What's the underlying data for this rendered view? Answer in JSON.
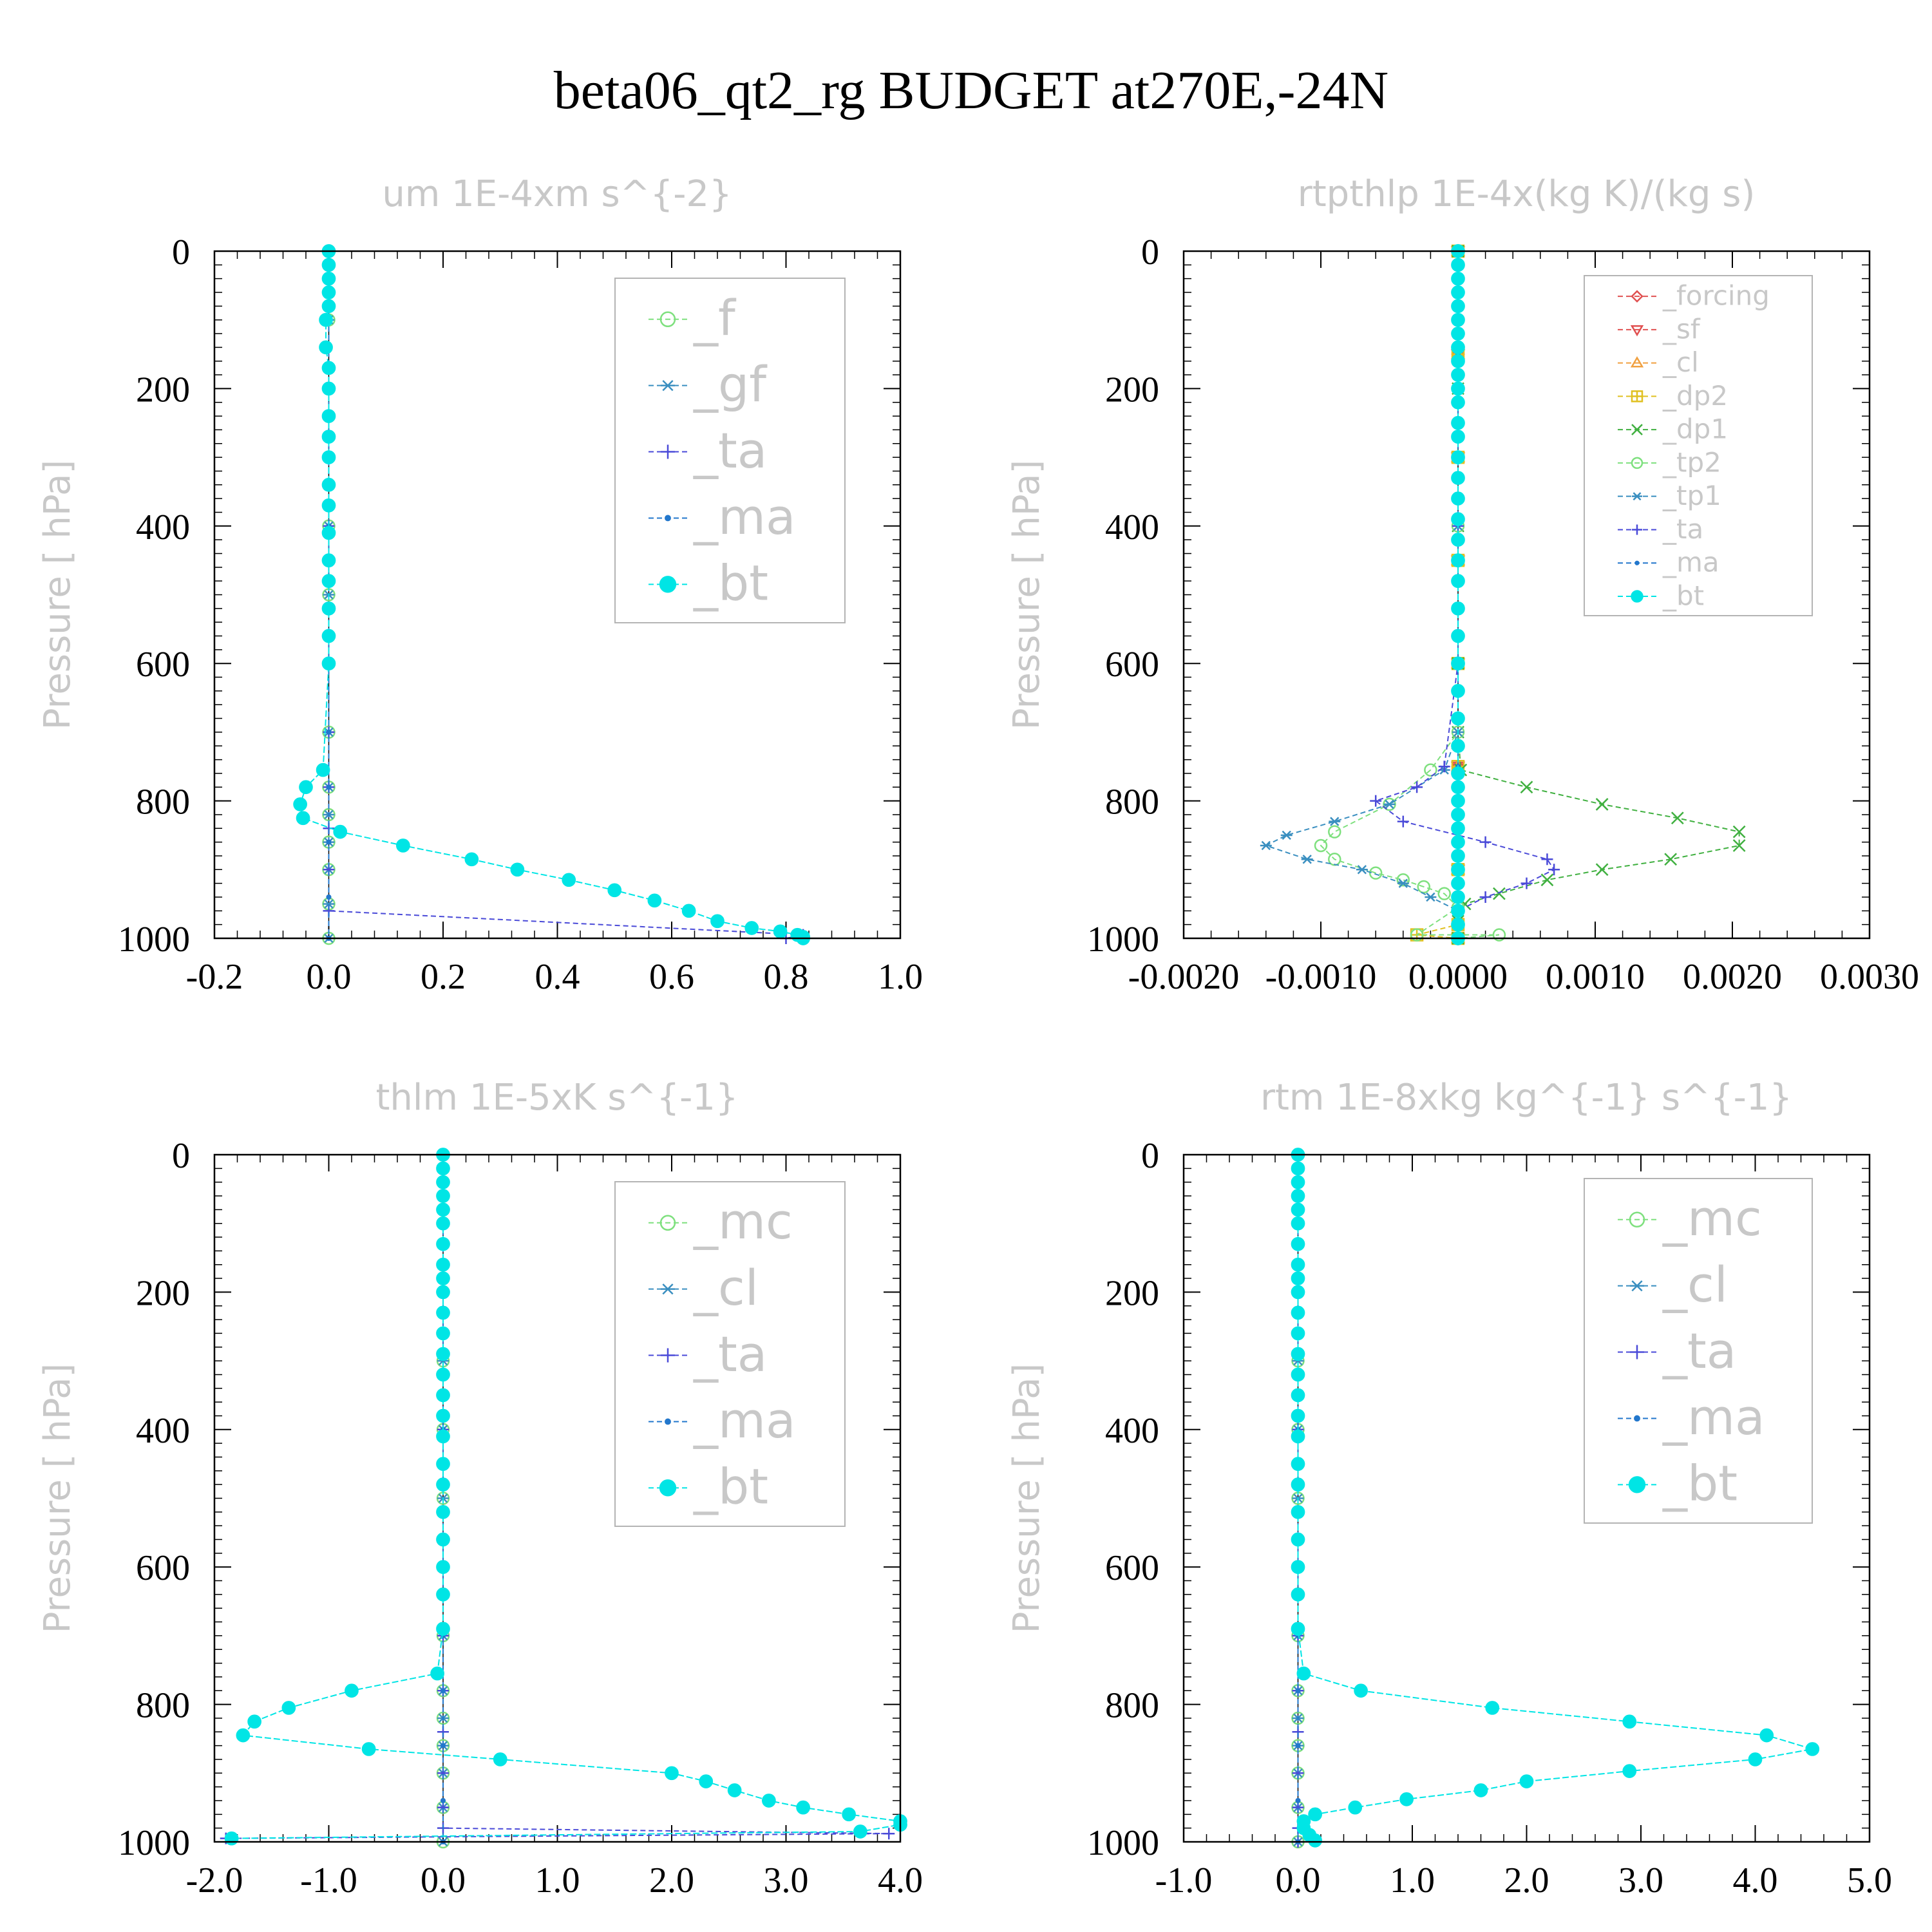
{
  "figure_title": "beta06_qt2_rg  BUDGET at270E,-24N",
  "chart_data": [
    {
      "type": "line",
      "title": "um  1E-4xm s^{-2}",
      "ylabel": "Pressure [ hPa]",
      "xlim": [
        -0.2,
        1.0
      ],
      "ylim": [
        1000,
        0
      ],
      "xticks": [
        "-0.2",
        "0.0",
        "0.2",
        "0.4",
        "0.6",
        "0.8",
        "1.0"
      ],
      "yticks": [
        "0",
        "200",
        "400",
        "600",
        "800",
        "1000"
      ],
      "legend_position": "top-right",
      "series": [
        {
          "name": "_f",
          "color": "#7ee07e",
          "marker": "circle",
          "x": [
            0,
            0,
            0,
            0,
            0,
            0,
            0,
            0,
            0,
            0,
            0,
            0,
            0,
            0
          ],
          "y": [
            0,
            100,
            200,
            300,
            400,
            500,
            600,
            700,
            780,
            820,
            860,
            900,
            950,
            1000
          ]
        },
        {
          "name": "_gf",
          "color": "#3a8fc0",
          "marker": "asterisk",
          "x": [
            0,
            0,
            0,
            0,
            0,
            0,
            0,
            0,
            0,
            0,
            0,
            0,
            0,
            0
          ],
          "y": [
            0,
            100,
            200,
            300,
            400,
            500,
            600,
            700,
            780,
            820,
            860,
            900,
            950,
            1000
          ]
        },
        {
          "name": "_ta",
          "color": "#4a4ad8",
          "marker": "plus",
          "x": [
            0,
            0,
            0,
            0,
            0,
            0,
            0,
            0,
            0,
            0.83,
            0.8
          ],
          "y": [
            0,
            200,
            400,
            600,
            700,
            780,
            840,
            900,
            960,
            995,
            1000
          ]
        },
        {
          "name": "_ma",
          "color": "#2277cc",
          "marker": "dot",
          "x": [
            0,
            0,
            0,
            0,
            0,
            0,
            0,
            0,
            0
          ],
          "y": [
            0,
            200,
            400,
            600,
            700,
            780,
            860,
            940,
            1000
          ]
        },
        {
          "name": "_bt",
          "color": "#00e5e5",
          "marker": "filled-circle",
          "x": [
            0,
            0,
            0,
            0,
            0,
            -0.005,
            -0.005,
            0,
            0,
            0,
            0,
            0,
            0,
            0,
            0,
            0,
            0,
            0,
            0,
            0,
            -0.01,
            -0.04,
            -0.05,
            -0.045,
            0.02,
            0.13,
            0.25,
            0.33,
            0.42,
            0.5,
            0.57,
            0.63,
            0.68,
            0.74,
            0.79,
            0.82,
            0.83,
            0.83
          ],
          "y": [
            0,
            20,
            40,
            60,
            80,
            100,
            140,
            170,
            200,
            240,
            270,
            300,
            340,
            370,
            410,
            450,
            480,
            520,
            560,
            600,
            755,
            780,
            805,
            825,
            845,
            865,
            885,
            900,
            915,
            930,
            945,
            960,
            975,
            985,
            990,
            995,
            998,
            1000
          ]
        }
      ]
    },
    {
      "type": "line",
      "title": "rtpthlp  1E-4x(kg K)/(kg s)",
      "ylabel": "Pressure [ hPa]",
      "xlim": [
        -0.002,
        0.003
      ],
      "ylim": [
        1000,
        0
      ],
      "xticks": [
        "-0.0020",
        "-0.0010",
        "0.0000",
        "0.0010",
        "0.0020",
        "0.0030"
      ],
      "yticks": [
        "0",
        "200",
        "400",
        "600",
        "800",
        "1000"
      ],
      "legend_position": "top-right",
      "series": [
        {
          "name": "_forcing",
          "color": "#e05050",
          "marker": "diamond",
          "x": [
            0,
            0,
            0,
            0,
            0,
            0,
            0,
            0
          ],
          "y": [
            0,
            150,
            300,
            450,
            600,
            750,
            900,
            1000
          ]
        },
        {
          "name": "_sf",
          "color": "#e05050",
          "marker": "triangle-down",
          "x": [
            0,
            0,
            0,
            0,
            0,
            0,
            0,
            0
          ],
          "y": [
            0,
            150,
            300,
            450,
            600,
            750,
            900,
            1000
          ]
        },
        {
          "name": "_cl",
          "color": "#f0a040",
          "marker": "triangle-up",
          "x": [
            0,
            0,
            0,
            0,
            0,
            0,
            0,
            0
          ],
          "y": [
            0,
            150,
            300,
            450,
            600,
            750,
            900,
            1000
          ]
        },
        {
          "name": "_dp2",
          "color": "#e0c020",
          "marker": "box-plus",
          "x": [
            0,
            0,
            0,
            0,
            0,
            0,
            0,
            0,
            -0.0003,
            0
          ],
          "y": [
            0,
            150,
            300,
            450,
            600,
            750,
            900,
            980,
            995,
            1000
          ]
        },
        {
          "name": "_dp1",
          "color": "#40b040",
          "marker": "cross",
          "x": [
            0,
            0,
            0,
            0,
            0,
            2e-05,
            0.0005,
            0.00105,
            0.0016,
            0.00205,
            0.00205,
            0.00155,
            0.00105,
            0.00065,
            0.0003,
            5e-05,
            0,
            0
          ],
          "y": [
            0,
            200,
            400,
            600,
            700,
            755,
            780,
            805,
            825,
            845,
            865,
            885,
            900,
            915,
            935,
            950,
            975,
            1000
          ]
        },
        {
          "name": "_tp2",
          "color": "#7ee07e",
          "marker": "circle",
          "x": [
            0,
            0,
            0,
            0,
            0,
            -0.0002,
            -0.0005,
            -0.0009,
            -0.001,
            -0.0009,
            -0.0006,
            -0.0004,
            -0.00025,
            -0.0001,
            0,
            -0.0003,
            0.0003,
            0
          ],
          "y": [
            0,
            200,
            400,
            600,
            700,
            755,
            805,
            845,
            865,
            885,
            905,
            915,
            925,
            935,
            955,
            995,
            995,
            1000
          ]
        },
        {
          "name": "_tp1",
          "color": "#3a8fc0",
          "marker": "asterisk",
          "x": [
            0,
            0,
            0,
            0,
            0,
            -0.0001,
            -0.0005,
            -0.0009,
            -0.00125,
            -0.0014,
            -0.0011,
            -0.0007,
            -0.0004,
            -0.0002,
            0,
            0
          ],
          "y": [
            0,
            200,
            400,
            600,
            700,
            755,
            805,
            830,
            850,
            865,
            885,
            900,
            920,
            940,
            960,
            1000
          ]
        },
        {
          "name": "_ta",
          "color": "#4a4ad8",
          "marker": "plus",
          "x": [
            0,
            0,
            0,
            0,
            -0.0001,
            -0.0003,
            -0.0006,
            -0.0004,
            0.0002,
            0.00065,
            0.0007,
            0.0005,
            0.0002,
            0,
            0
          ],
          "y": [
            0,
            200,
            400,
            600,
            750,
            780,
            800,
            830,
            860,
            885,
            900,
            920,
            940,
            960,
            1000
          ]
        },
        {
          "name": "_ma",
          "color": "#2277cc",
          "marker": "dot",
          "x": [
            0,
            0,
            0,
            0,
            0,
            0,
            0,
            0
          ],
          "y": [
            0,
            150,
            300,
            450,
            600,
            750,
            900,
            1000
          ]
        },
        {
          "name": "_bt",
          "color": "#00e5e5",
          "marker": "filled-circle",
          "x": [
            0,
            0,
            0,
            0,
            0,
            0,
            0,
            0,
            0,
            0,
            0,
            0,
            0,
            0,
            0,
            0,
            0,
            0,
            0,
            0,
            0,
            0,
            0,
            0,
            0,
            0,
            0,
            0,
            0,
            0,
            0,
            0,
            0,
            0,
            0,
            0,
            0,
            0,
            0,
            0
          ],
          "y": [
            0,
            20,
            40,
            60,
            80,
            100,
            120,
            140,
            160,
            180,
            200,
            220,
            250,
            270,
            300,
            330,
            360,
            390,
            420,
            450,
            480,
            520,
            560,
            600,
            640,
            680,
            720,
            760,
            780,
            800,
            820,
            840,
            860,
            880,
            900,
            920,
            940,
            960,
            980,
            1000
          ]
        }
      ]
    },
    {
      "type": "line",
      "title": "thlm  1E-5xK s^{-1}",
      "ylabel": "Pressure [ hPa]",
      "xlim": [
        -2.0,
        4.0
      ],
      "ylim": [
        1000,
        0
      ],
      "xticks": [
        "-2.0",
        "-1.0",
        "0.0",
        "1.0",
        "2.0",
        "3.0",
        "4.0"
      ],
      "yticks": [
        "0",
        "200",
        "400",
        "600",
        "800",
        "1000"
      ],
      "legend_position": "top-right",
      "series": [
        {
          "name": "_mc",
          "color": "#7ee07e",
          "marker": "circle",
          "x": [
            0,
            0,
            0,
            0,
            0,
            0,
            0,
            0,
            0,
            0,
            0,
            0,
            0,
            0
          ],
          "y": [
            0,
            100,
            200,
            300,
            400,
            500,
            600,
            700,
            780,
            820,
            860,
            900,
            950,
            1000
          ]
        },
        {
          "name": "_cl",
          "color": "#3a8fc0",
          "marker": "asterisk",
          "x": [
            0,
            0,
            0,
            0,
            0,
            0,
            0,
            0,
            0,
            0,
            0,
            0,
            0,
            0
          ],
          "y": [
            0,
            100,
            200,
            300,
            400,
            500,
            600,
            700,
            780,
            820,
            860,
            900,
            950,
            1000
          ]
        },
        {
          "name": "_ta",
          "color": "#4a4ad8",
          "marker": "plus",
          "x": [
            0,
            0,
            0,
            0,
            0,
            0,
            0,
            0,
            0,
            0,
            3.9,
            -1.9
          ],
          "y": [
            0,
            200,
            400,
            600,
            700,
            780,
            840,
            900,
            950,
            980,
            988,
            995
          ]
        },
        {
          "name": "_ma",
          "color": "#2277cc",
          "marker": "dot",
          "x": [
            0,
            0,
            0,
            0,
            0,
            0,
            0,
            0,
            0
          ],
          "y": [
            0,
            200,
            400,
            600,
            700,
            780,
            860,
            940,
            1000
          ]
        },
        {
          "name": "_bt",
          "color": "#00e5e5",
          "marker": "filled-circle",
          "x": [
            0,
            0,
            0,
            0,
            0,
            0,
            0,
            0,
            0,
            0,
            0,
            0,
            0,
            0,
            0,
            0,
            0,
            0,
            0,
            0,
            0,
            0,
            0,
            0,
            -0.05,
            -0.8,
            -1.35,
            -1.65,
            -1.75,
            -0.65,
            0.5,
            2.0,
            2.3,
            2.55,
            2.85,
            3.15,
            3.55,
            4.0,
            4.0,
            3.65,
            -1.85
          ],
          "y": [
            0,
            20,
            40,
            60,
            80,
            100,
            130,
            160,
            180,
            200,
            230,
            260,
            290,
            320,
            350,
            380,
            410,
            450,
            480,
            520,
            560,
            600,
            640,
            690,
            755,
            780,
            805,
            825,
            845,
            865,
            880,
            900,
            912,
            925,
            940,
            950,
            960,
            970,
            975,
            985,
            995
          ]
        }
      ]
    },
    {
      "type": "line",
      "title": "rtm  1E-8xkg kg^{-1} s^{-1}",
      "ylabel": "Pressure [ hPa]",
      "xlim": [
        -1.0,
        5.0
      ],
      "ylim": [
        1000,
        0
      ],
      "xticks": [
        "-1.0",
        "0.0",
        "1.0",
        "2.0",
        "3.0",
        "4.0",
        "5.0"
      ],
      "yticks": [
        "0",
        "200",
        "400",
        "600",
        "800",
        "1000"
      ],
      "legend_position": "top-right",
      "series": [
        {
          "name": "_mc",
          "color": "#7ee07e",
          "marker": "circle",
          "x": [
            0,
            0,
            0,
            0,
            0,
            0,
            0,
            0,
            0,
            0,
            0,
            0,
            0,
            0
          ],
          "y": [
            0,
            100,
            200,
            300,
            400,
            500,
            600,
            700,
            780,
            820,
            860,
            900,
            950,
            1000
          ]
        },
        {
          "name": "_cl",
          "color": "#3a8fc0",
          "marker": "asterisk",
          "x": [
            0,
            0,
            0,
            0,
            0,
            0,
            0,
            0,
            0,
            0,
            0,
            0,
            0,
            0
          ],
          "y": [
            0,
            100,
            200,
            300,
            400,
            500,
            600,
            700,
            780,
            820,
            860,
            900,
            950,
            1000
          ]
        },
        {
          "name": "_ta",
          "color": "#4a4ad8",
          "marker": "plus",
          "x": [
            0,
            0,
            0,
            0,
            0,
            0,
            0,
            0,
            0,
            0,
            0
          ],
          "y": [
            0,
            200,
            400,
            600,
            700,
            780,
            840,
            900,
            950,
            980,
            1000
          ]
        },
        {
          "name": "_ma",
          "color": "#2277cc",
          "marker": "dot",
          "x": [
            0,
            0,
            0,
            0,
            0,
            0,
            0,
            0,
            0
          ],
          "y": [
            0,
            200,
            400,
            600,
            700,
            780,
            860,
            940,
            1000
          ]
        },
        {
          "name": "_bt",
          "color": "#00e5e5",
          "marker": "filled-circle",
          "x": [
            0,
            0,
            0,
            0,
            0,
            0,
            0,
            0,
            0,
            0,
            0,
            0,
            0,
            0,
            0,
            0,
            0,
            0,
            0,
            0,
            0,
            0,
            0,
            0,
            0.05,
            0.55,
            1.7,
            2.9,
            4.1,
            4.5,
            4.0,
            2.9,
            2.0,
            1.6,
            0.95,
            0.5,
            0.15,
            0.05,
            0.05,
            0.1,
            0.15
          ],
          "y": [
            0,
            20,
            40,
            60,
            80,
            100,
            130,
            160,
            180,
            200,
            230,
            260,
            290,
            320,
            350,
            380,
            410,
            450,
            480,
            520,
            560,
            600,
            640,
            690,
            755,
            780,
            805,
            825,
            845,
            865,
            880,
            897,
            912,
            925,
            938,
            950,
            960,
            970,
            980,
            990,
            998
          ]
        }
      ]
    }
  ]
}
